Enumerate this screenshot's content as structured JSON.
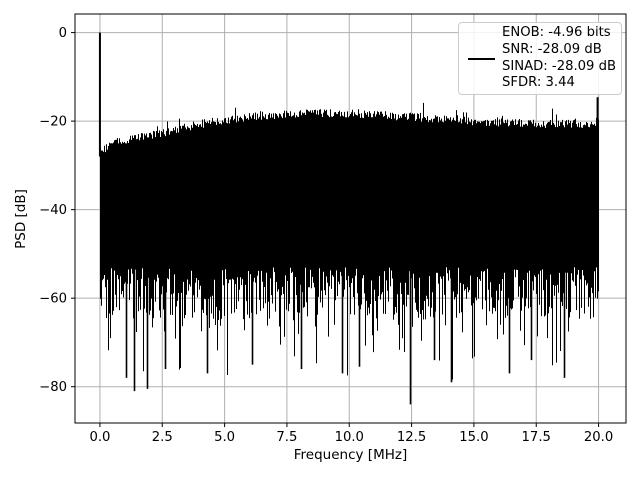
{
  "figure": {
    "background": "#ffffff",
    "axes_facecolor": "#ffffff",
    "spine_color": "#000000"
  },
  "chart_data": {
    "type": "line",
    "title": "",
    "xlabel": "Frequency [MHz]",
    "ylabel": "PSD [dB]",
    "xlim": [
      -1.0,
      21.1
    ],
    "ylim": [
      -88.2,
      4.2
    ],
    "xticks": [
      0,
      2.5,
      5,
      7.5,
      10,
      12.5,
      15,
      17.5,
      20
    ],
    "xtick_labels": [
      "0.0",
      "2.5",
      "5.0",
      "7.5",
      "10.0",
      "12.5",
      "15.0",
      "17.5",
      "20.0"
    ],
    "yticks": [
      0,
      -20,
      -40,
      -60,
      -80
    ],
    "ytick_labels": [
      "0",
      "−20",
      "−40",
      "−60",
      "−80"
    ],
    "grid": true,
    "grid_color": "#b0b0b0",
    "line_color": "#000000",
    "legend": {
      "position": "upper right",
      "entries": [
        "ENOB: -4.96 bits",
        "SNR: -28.09 dB",
        "SINAD: -28.09 dB",
        "SFDR: 3.44"
      ]
    },
    "stats": {
      "enob_bits": -4.96,
      "snr_db": -28.09,
      "sinad_db": -28.09,
      "sfdr": 3.44
    },
    "series": [
      {
        "name": "PSD",
        "color": "#000000",
        "description": "Dense FFT noise spectrum rendered as a solid black band between its upper envelope and noise-floor nulls",
        "dc_spike": {
          "x": 0.0,
          "peak_db": 0.0
        },
        "nyquist_spike": {
          "x": 20.0,
          "peak_db": -14.6
        },
        "upper_envelope_db": [
          [
            0.15,
            -26.5
          ],
          [
            0.5,
            -24.8
          ],
          [
            1,
            -24.2
          ],
          [
            1.5,
            -23.8
          ],
          [
            2,
            -23.2
          ],
          [
            2.5,
            -22.6
          ],
          [
            3,
            -22.0
          ],
          [
            3.5,
            -21.3
          ],
          [
            4,
            -20.7
          ],
          [
            4.5,
            -20.2
          ],
          [
            5,
            -19.8
          ],
          [
            5.5,
            -19.4
          ],
          [
            6,
            -19.1
          ],
          [
            6.5,
            -18.8
          ],
          [
            7,
            -18.6
          ],
          [
            7.5,
            -18.4
          ],
          [
            8,
            -18.3
          ],
          [
            8.5,
            -18.2
          ],
          [
            9,
            -18.2
          ],
          [
            9.5,
            -18.2
          ],
          [
            10,
            -18.3
          ],
          [
            10.5,
            -18.4
          ],
          [
            11,
            -18.5
          ],
          [
            11.5,
            -18.7
          ],
          [
            12,
            -18.9
          ],
          [
            12.5,
            -19.1
          ],
          [
            13,
            -19.3
          ],
          [
            13.5,
            -19.5
          ],
          [
            14,
            -19.7
          ],
          [
            15,
            -20.0
          ],
          [
            16,
            -20.3
          ],
          [
            17,
            -20.5
          ],
          [
            18,
            -20.6
          ],
          [
            19,
            -20.6
          ],
          [
            20,
            -20.4
          ]
        ],
        "noise_band_bottom_db": [
          -53,
          -65
        ],
        "deep_nulls_db": [
          [
            1.05,
            -78
          ],
          [
            1.35,
            -81
          ],
          [
            1.9,
            -80.5
          ],
          [
            2.6,
            -76
          ],
          [
            4.3,
            -77
          ],
          [
            6.1,
            -75
          ],
          [
            8.05,
            -76
          ],
          [
            9.7,
            -77
          ],
          [
            10.4,
            -75.5
          ],
          [
            12.45,
            -84
          ],
          [
            13.4,
            -74
          ],
          [
            14.1,
            -79
          ],
          [
            16.4,
            -77
          ],
          [
            17.3,
            -74
          ],
          [
            18.6,
            -78
          ]
        ],
        "min_db": -84,
        "max_db": 0
      }
    ]
  }
}
